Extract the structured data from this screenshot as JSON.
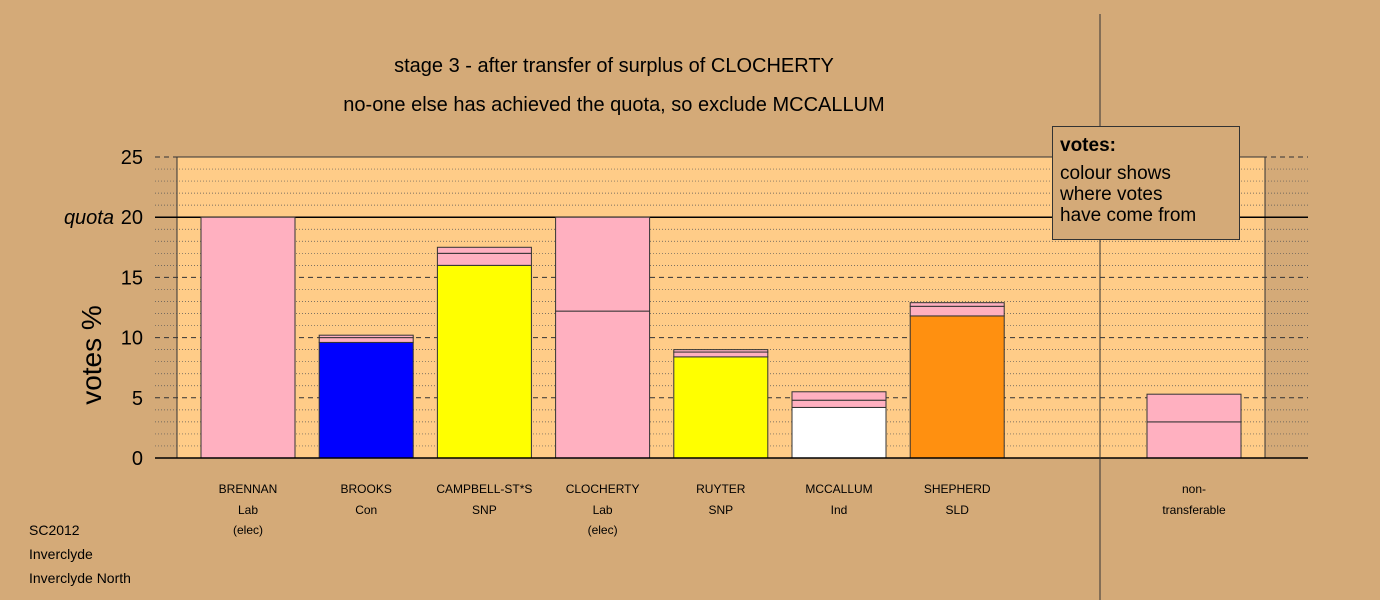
{
  "chart_data": {
    "type": "bar",
    "stacked": true,
    "title": "stage 3 - after transfer of surplus of CLOCHERTY",
    "subtitle": "no-one else has achieved the quota, so exclude MCCALLUM",
    "ylabel": "votes %",
    "ylim": [
      0,
      25
    ],
    "yticks": [
      0,
      5,
      10,
      15,
      20,
      25
    ],
    "quota": 20,
    "quota_label": "quota",
    "grid": true,
    "candidates": [
      {
        "name": "BRENNAN",
        "party": "Lab",
        "note": "(elec)",
        "segments": [
          {
            "value": 20,
            "color": "#ffb0c0"
          }
        ]
      },
      {
        "name": "BROOKS",
        "party": "Con",
        "note": "",
        "segments": [
          {
            "value": 9.6,
            "color": "#0000ff"
          },
          {
            "value": 0.4,
            "color": "#ffb0c0"
          },
          {
            "value": 0.2,
            "color": "#ffb0c0"
          }
        ]
      },
      {
        "name": "CAMPBELL-ST*S",
        "party": "SNP",
        "note": "",
        "segments": [
          {
            "value": 16.0,
            "color": "#ffff00"
          },
          {
            "value": 1.0,
            "color": "#ffb0c0"
          },
          {
            "value": 0.5,
            "color": "#ffb0c0"
          }
        ]
      },
      {
        "name": "CLOCHERTY",
        "party": "Lab",
        "note": "(elec)",
        "segments": [
          {
            "value": 12.2,
            "color": "#ffb0c0"
          },
          {
            "value": 7.8,
            "color": "#ffb0c0"
          }
        ]
      },
      {
        "name": "RUYTER",
        "party": "SNP",
        "note": "",
        "segments": [
          {
            "value": 8.4,
            "color": "#ffff00"
          },
          {
            "value": 0.4,
            "color": "#ffb0c0"
          },
          {
            "value": 0.2,
            "color": "#ffb0c0"
          }
        ]
      },
      {
        "name": "MCCALLUM",
        "party": "Ind",
        "note": "",
        "segments": [
          {
            "value": 4.2,
            "color": "#ffffff"
          },
          {
            "value": 0.6,
            "color": "#ffb0c0"
          },
          {
            "value": 0.7,
            "color": "#ffb0c0"
          }
        ]
      },
      {
        "name": "SHEPHERD",
        "party": "SLD",
        "note": "",
        "segments": [
          {
            "value": 11.8,
            "color": "#ff9010"
          },
          {
            "value": 0.8,
            "color": "#ffb0c0"
          },
          {
            "value": 0.3,
            "color": "#ffb0c0"
          }
        ]
      }
    ],
    "nontransferable": {
      "label1": "non-",
      "label2": "transferable",
      "segments": [
        {
          "value": 3.0,
          "color": "#ffb0c0"
        },
        {
          "value": 2.3,
          "color": "#ffb0c0"
        }
      ]
    },
    "legend": {
      "title": "votes:",
      "lines": [
        "colour shows",
        "where votes",
        "have come from"
      ]
    }
  },
  "footer": {
    "line1": "SC2012",
    "line2": "Inverclyde",
    "line3": "Inverclyde North"
  },
  "colors": {
    "background": "#d4aa78",
    "plot_area": "#ffcc88",
    "pink": "#ffb0c0"
  }
}
